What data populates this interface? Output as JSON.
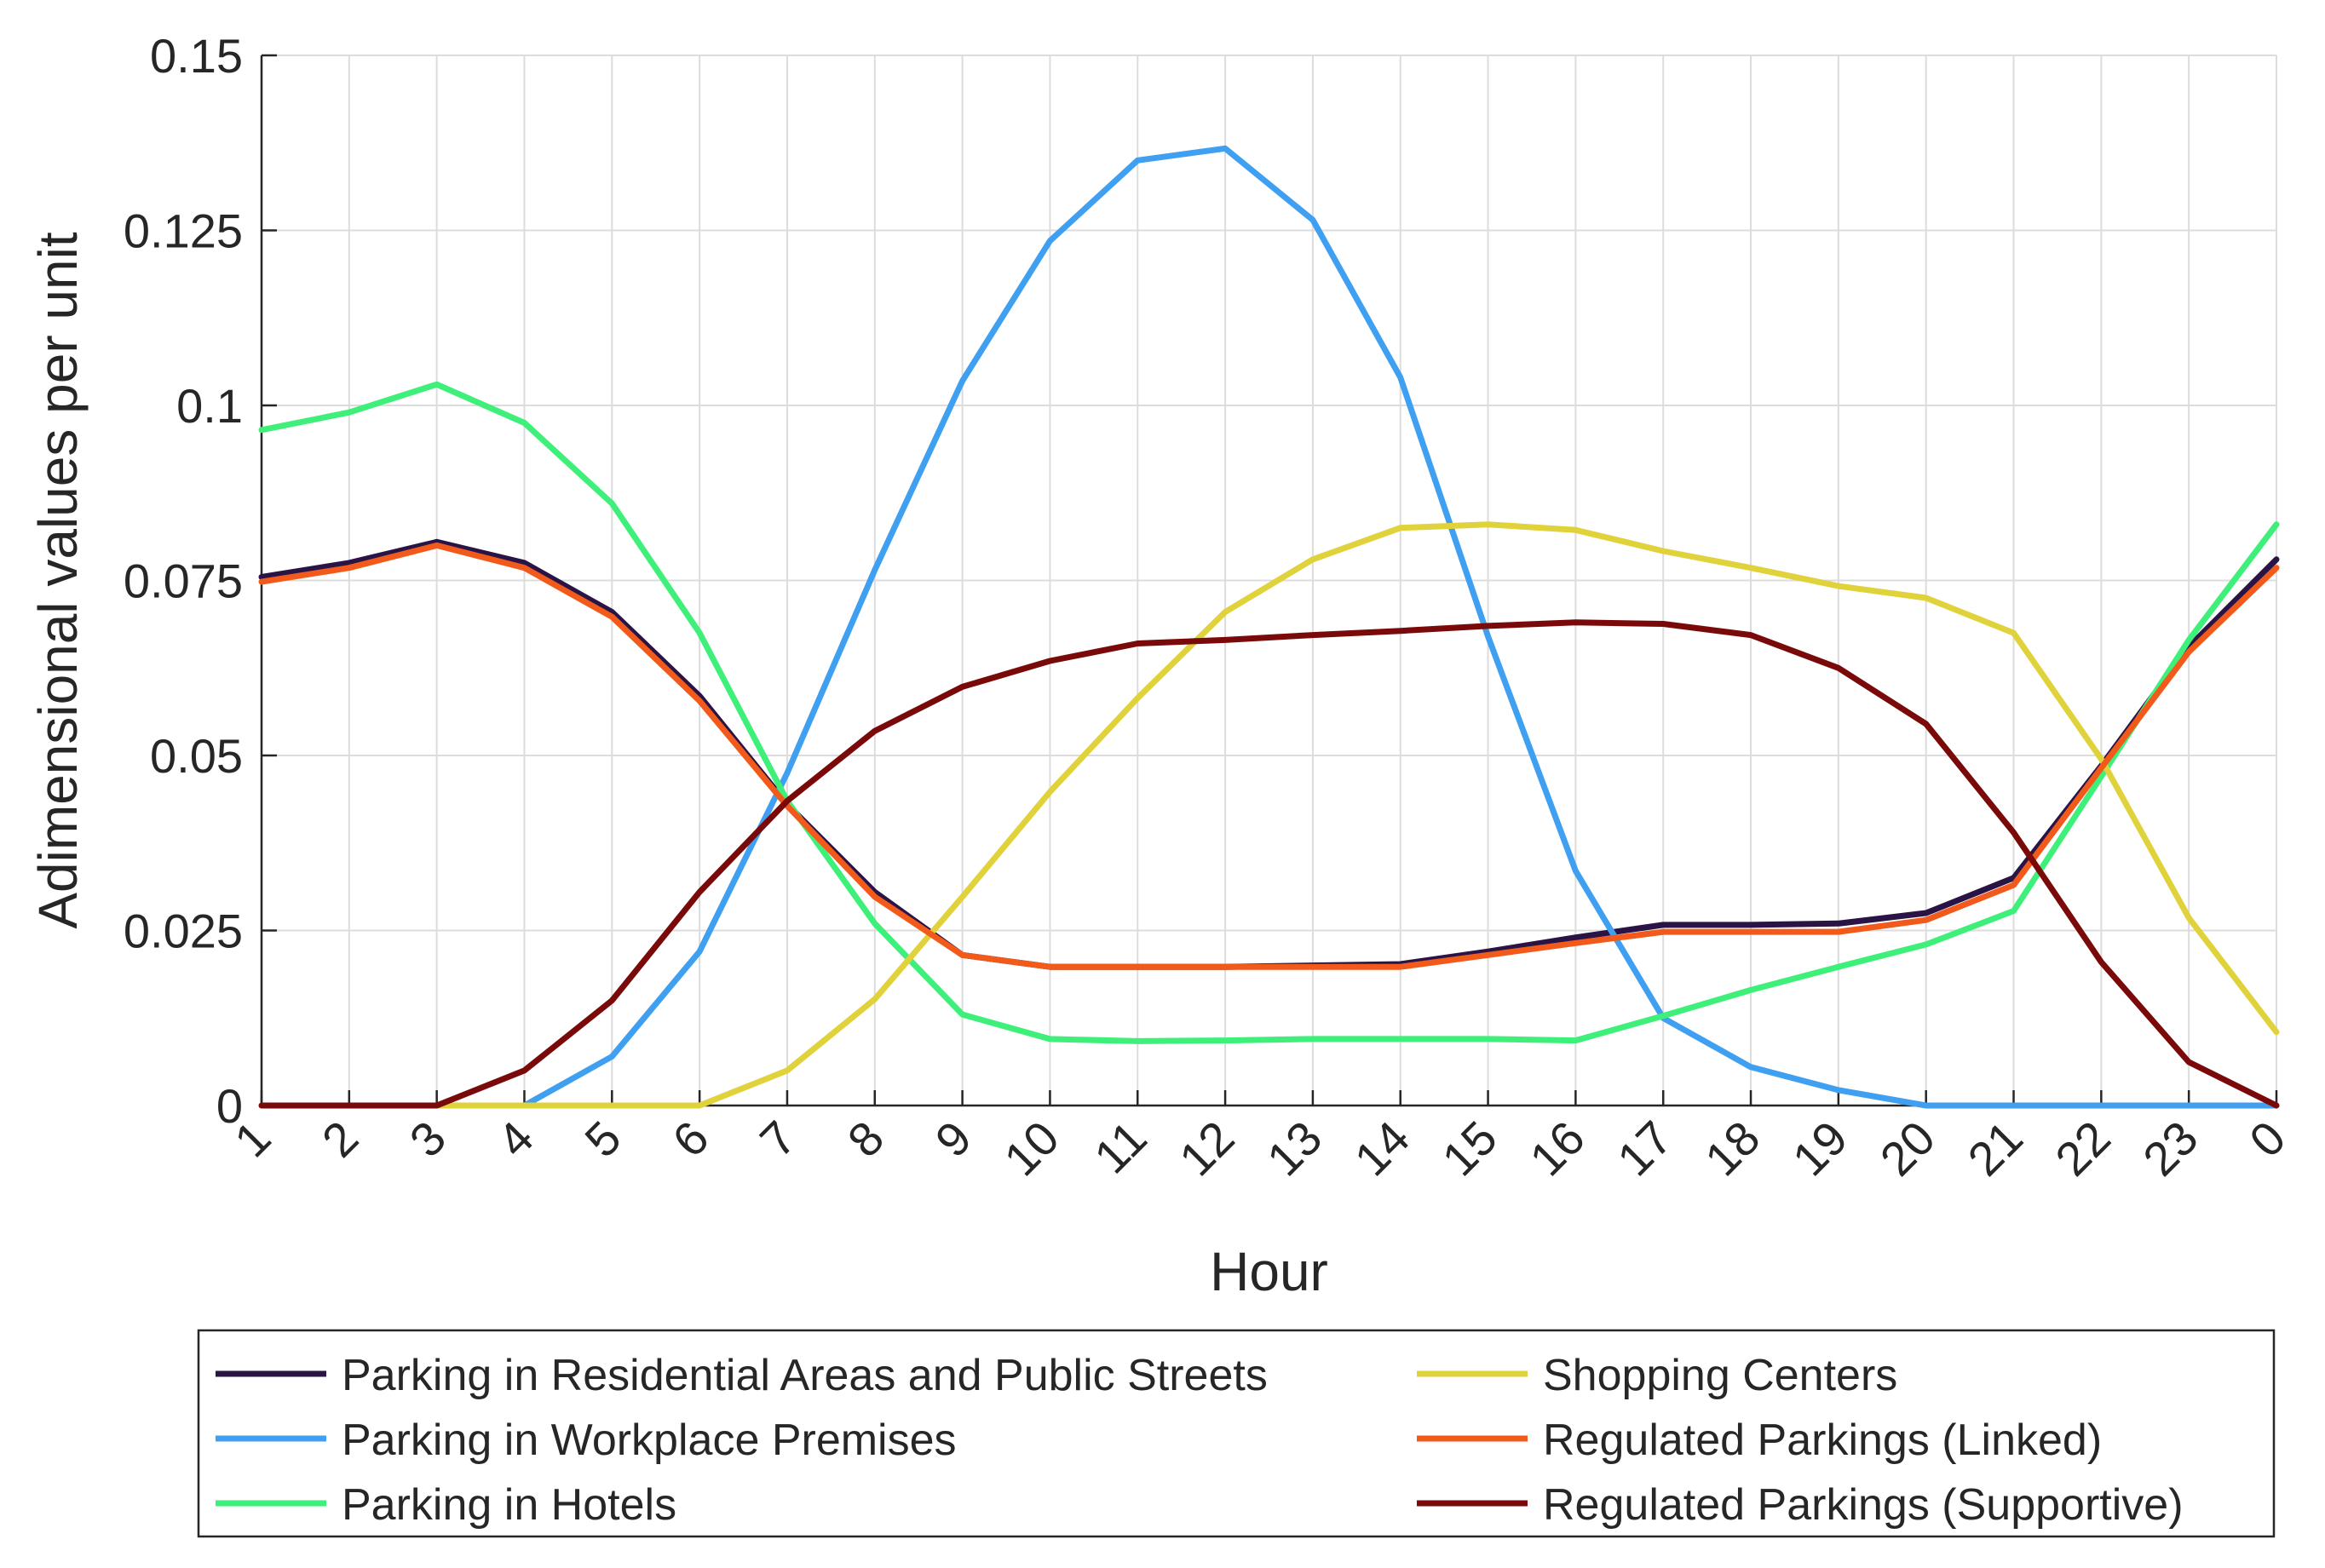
{
  "chart_data": {
    "type": "line",
    "xlabel": "Hour",
    "ylabel": "Adimensional values per unit",
    "categories": [
      "1",
      "2",
      "3",
      "4",
      "5",
      "6",
      "7",
      "8",
      "9",
      "10",
      "11",
      "12",
      "13",
      "14",
      "15",
      "16",
      "17",
      "18",
      "19",
      "20",
      "21",
      "22",
      "23",
      "0"
    ],
    "ylim": [
      0,
      0.15
    ],
    "yticks": [
      0,
      0.025,
      0.05,
      0.075,
      0.1,
      0.125,
      0.15
    ],
    "ytick_labels": [
      "0",
      "0.025",
      "0.05",
      "0.075",
      "0.1",
      "0.125",
      "0.15"
    ],
    "grid": true,
    "legend_position": "bottom",
    "series": [
      {
        "name": "Parking in Residential Areas and Public Streets",
        "color": "#2a1446",
        "values": [
          0.0755,
          0.0775,
          0.0805,
          0.0775,
          0.0705,
          0.0585,
          0.043,
          0.0305,
          0.0215,
          0.0198,
          0.0198,
          0.0198,
          0.02,
          0.0202,
          0.022,
          0.024,
          0.0258,
          0.0258,
          0.026,
          0.0275,
          0.0325,
          0.0485,
          0.0655,
          0.078
        ],
        "values_note_omitted": false
      },
      {
        "name": "Parking in Workplace Premises",
        "color": "#3f9ff0",
        "values": [
          null,
          null,
          null,
          0.0,
          0.007,
          0.022,
          0.0475,
          0.0765,
          0.1035,
          0.1235,
          0.135,
          0.1367,
          0.1265,
          0.104,
          0.067,
          0.0335,
          0.0125,
          0.0055,
          0.0022,
          0.0,
          0.0,
          0.0,
          0.0,
          0.0
        ]
      },
      {
        "name": "Parking in Hotels",
        "color": "#3ef07a",
        "values": [
          0.0965,
          0.099,
          0.103,
          0.0975,
          0.086,
          0.0675,
          0.0435,
          0.026,
          0.013,
          0.0095,
          0.0092,
          0.0093,
          0.0095,
          0.0095,
          0.0095,
          0.0093,
          0.0128,
          0.0165,
          0.0198,
          0.023,
          0.0278,
          0.047,
          0.0665,
          0.083
        ]
      },
      {
        "name": "Shopping Centers",
        "color": "#e0d23a",
        "values": [
          null,
          null,
          0.0,
          0.0,
          0.0,
          0.0,
          0.005,
          0.0152,
          0.0298,
          0.0448,
          0.0582,
          0.0705,
          0.078,
          0.0825,
          0.083,
          0.0822,
          0.0792,
          0.0768,
          0.0742,
          0.0725,
          0.0675,
          0.0495,
          0.0268,
          0.0105
        ]
      },
      {
        "name": "Regulated Parkings (Linked)",
        "color": "#f15a1a",
        "values": [
          0.0748,
          0.0768,
          0.08,
          0.0768,
          0.0698,
          0.0578,
          0.0428,
          0.0298,
          0.0215,
          0.0198,
          0.0198,
          0.0198,
          0.0198,
          0.0198,
          0.0215,
          0.0232,
          0.0248,
          0.0248,
          0.0248,
          0.0265,
          0.0315,
          0.0482,
          0.0648,
          0.0768
        ]
      },
      {
        "name": "Regulated Parkings (Supportive)",
        "color": "#7a0a0a",
        "values": [
          0.0,
          0.0,
          0.0,
          0.005,
          0.015,
          0.0305,
          0.0435,
          0.0535,
          0.0598,
          0.0635,
          0.066,
          0.0665,
          0.0672,
          0.0678,
          0.0685,
          0.069,
          0.0688,
          0.0672,
          0.0625,
          0.0545,
          0.039,
          0.0205,
          0.0062,
          0.0
        ]
      }
    ]
  }
}
